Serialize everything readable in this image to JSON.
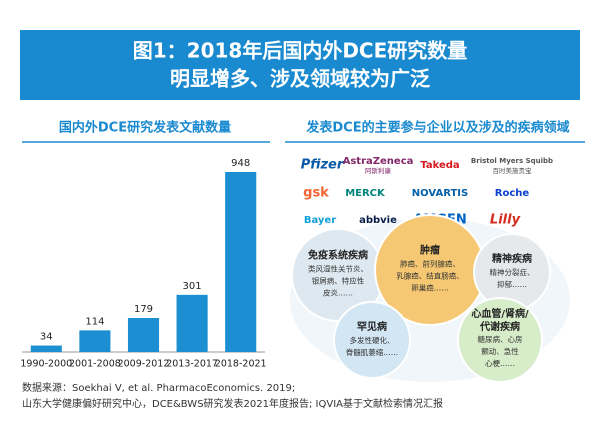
{
  "header": {
    "title_lines": [
      "图1：2018年后国内外DCE研究数量",
      "明显增多、涉及领域较为广泛"
    ]
  },
  "chart_data": {
    "type": "bar",
    "title": "国内外DCE研究发表文献数量",
    "categories": [
      "1990-2000",
      "2001-2008",
      "2009-2012",
      "2013-2017",
      "2018-2021"
    ],
    "values": [
      34,
      114,
      179,
      301,
      948
    ],
    "color": "#1b8fd2"
  },
  "diagram": {
    "title": "发表DCE的主要参与企业以及涉及的疾病领域",
    "logos": [
      {
        "label": "Pfizer",
        "color": "#0b5aa8"
      },
      {
        "label": "AstraZeneca",
        "sub": "阿斯利康",
        "color": "#83276b"
      },
      {
        "label": "Takeda",
        "color": "#d71920"
      },
      {
        "label": "Bristol Myers Squibb",
        "sub": "百时美施贵宝",
        "color": "#555555"
      },
      {
        "label": "gsk",
        "color": "#f36633"
      },
      {
        "label": "MERCK",
        "color": "#00857c"
      },
      {
        "label": "NOVARTIS",
        "color": "#0460a9"
      },
      {
        "label": "Roche",
        "color": "#0b41cd"
      },
      {
        "label": "Bayer",
        "color": "#10a0d8"
      },
      {
        "label": "abbvie",
        "color": "#071d49"
      },
      {
        "label": "AMGEN",
        "color": "#0063c3"
      },
      {
        "label": "Lilly",
        "color": "#d52b1e"
      }
    ],
    "diseases": [
      {
        "title": [
          "免疫系统疾病"
        ],
        "lines": [
          "类风湿性关节炎、",
          "银屑病、特应性",
          "皮炎……"
        ],
        "color": "#dde8f0"
      },
      {
        "title": [
          "肿瘤"
        ],
        "lines": [
          "肺癌、前列腺癌、",
          "乳腺癌、结直肠癌、",
          "卵巢癌……"
        ],
        "color": "#f6c873"
      },
      {
        "title": [
          "精神疾病"
        ],
        "lines": [
          "精神分裂症、",
          "抑郁……"
        ],
        "color": "#e6e9ec"
      },
      {
        "title": [
          "罕见病"
        ],
        "lines": [
          "多发性硬化、",
          "脊髓肌萎缩……"
        ],
        "color": "#d3e6f4"
      },
      {
        "title": [
          "心血管/肾病/",
          "代谢疾病"
        ],
        "lines": [
          "糖尿病、心房",
          "颤动、急性",
          "心梗……"
        ],
        "color": "#d7ecc9"
      }
    ]
  },
  "footer": {
    "lines": [
      "数据来源：Soekhai V, et al. PharmacoEconomics. 2019;",
      "山东大学健康偏好研究中心，DCE&BWS研究发表2021年度报告; IQVIA基于文献检索情况汇报"
    ]
  }
}
